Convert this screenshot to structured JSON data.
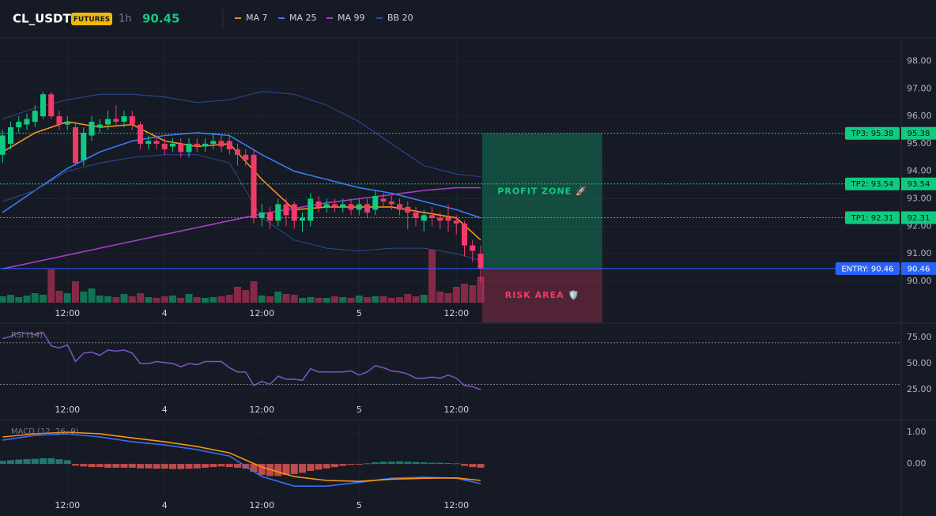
{
  "header": {
    "symbol": "CL_USDT",
    "badge": "FUTURES",
    "interval": "1h",
    "price": 90.45
  },
  "chart_data": [
    {
      "type": "candlestick",
      "up_color": "#0ecb81",
      "down_color": "#f23a68",
      "categories": [
        null,
        null,
        null,
        null,
        null,
        null,
        null,
        null,
        "12:00",
        null,
        null,
        null,
        null,
        null,
        null,
        null,
        null,
        null,
        null,
        null,
        "4",
        null,
        null,
        null,
        null,
        null,
        null,
        null,
        null,
        null,
        null,
        null,
        "12:00",
        null,
        null,
        null,
        null,
        null,
        null,
        null,
        null,
        null,
        null,
        null,
        "5",
        null,
        null,
        null,
        null,
        null,
        null,
        null,
        null,
        null,
        null,
        null,
        "12:00",
        null,
        null,
        null
      ],
      "open": [
        94.6,
        95.0,
        95.6,
        95.7,
        95.8,
        96.0,
        96.8,
        96.0,
        95.7,
        95.6,
        94.4,
        95.3,
        95.6,
        95.7,
        95.9,
        95.8,
        96.0,
        95.7,
        95.0,
        95.1,
        95.0,
        94.9,
        95.0,
        94.7,
        95.0,
        94.9,
        95.0,
        95.1,
        95.1,
        94.8,
        94.6,
        94.6,
        92.3,
        92.5,
        92.2,
        92.8,
        92.8,
        92.2,
        92.2,
        92.9,
        92.7,
        92.8,
        92.7,
        92.8,
        92.6,
        92.8,
        92.6,
        93.0,
        92.9,
        92.8,
        92.7,
        92.5,
        92.2,
        92.4,
        92.3,
        92.3,
        92.2,
        92.1,
        91.3,
        91.0
      ],
      "high": [
        95.5,
        95.8,
        96.0,
        96.1,
        96.4,
        96.9,
        96.9,
        96.2,
        96.0,
        95.8,
        95.6,
        96.0,
        95.9,
        96.2,
        96.4,
        96.2,
        96.2,
        95.8,
        95.3,
        95.3,
        95.2,
        95.2,
        95.2,
        95.2,
        95.2,
        95.2,
        95.4,
        95.3,
        95.3,
        95.0,
        94.8,
        94.8,
        92.8,
        92.7,
        93.0,
        93.0,
        92.9,
        92.5,
        93.2,
        93.1,
        93.0,
        93.0,
        93.0,
        93.0,
        93.0,
        93.0,
        93.3,
        93.2,
        93.1,
        93.0,
        92.9,
        92.7,
        92.6,
        92.7,
        92.5,
        92.8,
        92.4,
        92.2,
        91.5,
        91.3
      ],
      "low": [
        94.3,
        94.8,
        95.4,
        95.5,
        95.6,
        95.9,
        95.9,
        95.5,
        95.5,
        94.2,
        94.2,
        95.1,
        95.4,
        95.5,
        95.6,
        95.6,
        95.5,
        94.8,
        94.8,
        94.8,
        94.6,
        94.7,
        94.5,
        94.5,
        94.7,
        94.7,
        94.8,
        94.7,
        94.6,
        94.2,
        94.2,
        92.1,
        92.0,
        91.9,
        92.0,
        92.0,
        91.9,
        91.8,
        92.0,
        92.5,
        92.5,
        92.5,
        92.5,
        92.4,
        92.4,
        92.3,
        92.4,
        92.7,
        92.6,
        92.4,
        91.9,
        92.0,
        91.8,
        92.0,
        91.9,
        91.8,
        91.7,
        90.9,
        90.7,
        90.0
      ],
      "close": [
        95.3,
        95.6,
        95.8,
        95.9,
        96.2,
        96.8,
        96.0,
        95.7,
        95.8,
        94.3,
        95.4,
        95.8,
        95.7,
        95.9,
        95.8,
        96.0,
        95.7,
        95.0,
        95.1,
        95.0,
        94.8,
        95.0,
        94.7,
        95.0,
        94.9,
        95.0,
        95.1,
        94.9,
        94.8,
        94.6,
        94.4,
        92.3,
        92.5,
        92.2,
        92.8,
        92.4,
        92.2,
        92.3,
        93.0,
        92.7,
        92.8,
        92.7,
        92.8,
        92.6,
        92.8,
        92.5,
        93.1,
        92.9,
        92.8,
        92.6,
        92.5,
        92.3,
        92.4,
        92.3,
        92.2,
        92.2,
        92.1,
        91.3,
        91.1,
        90.46
      ],
      "volume": [
        8,
        10,
        7,
        9,
        12,
        10,
        42,
        15,
        12,
        27,
        14,
        18,
        9,
        8,
        7,
        11,
        8,
        12,
        7,
        6,
        8,
        9,
        6,
        11,
        7,
        6,
        7,
        8,
        10,
        20,
        16,
        27,
        9,
        8,
        14,
        11,
        10,
        6,
        7,
        6,
        6,
        8,
        7,
        6,
        9,
        7,
        8,
        8,
        6,
        7,
        11,
        8,
        10,
        67,
        14,
        12,
        20,
        24,
        22,
        33
      ],
      "series": [
        {
          "name": "MA 7",
          "color": "#f7931a",
          "x": [
            0,
            4,
            8,
            12,
            16,
            20,
            24,
            28,
            32,
            36,
            40,
            44,
            48,
            52,
            56,
            59
          ],
          "values": [
            94.7,
            95.4,
            95.8,
            95.6,
            95.7,
            95.1,
            94.9,
            95.0,
            93.7,
            92.6,
            92.7,
            92.7,
            92.7,
            92.5,
            92.3,
            91.5
          ]
        },
        {
          "name": "MA 25",
          "color": "#3b7bf6",
          "x": [
            0,
            4,
            8,
            12,
            16,
            20,
            24,
            28,
            32,
            36,
            40,
            44,
            48,
            52,
            56,
            59
          ],
          "values": [
            92.5,
            93.3,
            94.1,
            94.7,
            95.1,
            95.3,
            95.4,
            95.3,
            94.6,
            94.0,
            93.7,
            93.4,
            93.2,
            92.9,
            92.6,
            92.3
          ]
        },
        {
          "name": "MA 99",
          "color": "#a43fc7",
          "x": [
            0,
            4,
            8,
            12,
            16,
            20,
            24,
            28,
            32,
            36,
            40,
            44,
            48,
            52,
            56,
            59
          ],
          "values": [
            90.45,
            90.7,
            90.95,
            91.2,
            91.45,
            91.7,
            91.95,
            92.2,
            92.45,
            92.65,
            92.85,
            93.0,
            93.15,
            93.3,
            93.4,
            93.4
          ]
        },
        {
          "name": "BB 20",
          "color": "#2c4b94",
          "x": [
            0,
            4,
            8,
            12,
            16,
            20,
            24,
            28,
            32,
            36,
            40,
            44,
            48,
            52,
            56,
            59
          ],
          "values": [
            95.9,
            96.3,
            96.6,
            96.8,
            96.8,
            96.7,
            96.5,
            96.6,
            96.9,
            96.8,
            96.4,
            95.8,
            95.0,
            94.2,
            93.9,
            93.8
          ],
          "lower": [
            92.9,
            93.3,
            94.0,
            94.3,
            94.5,
            94.6,
            94.6,
            94.3,
            92.3,
            91.5,
            91.2,
            91.1,
            91.2,
            91.2,
            91.0,
            90.75
          ]
        }
      ],
      "levels": [
        {
          "label": "TP3: 95.38",
          "value": 95.38,
          "color": "#0ecb81",
          "style": "dotted"
        },
        {
          "label": "TP2: 93.54",
          "value": 93.54,
          "color": "#0ecb81",
          "style": "dotted"
        },
        {
          "label": "TP1: 92.31",
          "value": 92.31,
          "color": "#0ecb81",
          "style": "dotted"
        },
        {
          "label": "ENTRY: 90.46",
          "value": 90.46,
          "color": "#2962ff",
          "style": "solid"
        }
      ],
      "zones": [
        {
          "label": "PROFIT ZONE 🚀",
          "from": 90.46,
          "to": 95.38,
          "color": "#0ecb81"
        },
        {
          "label": "RISK AREA 🛡️",
          "from": 88.5,
          "to": 90.46,
          "color": "#f23a68"
        }
      ],
      "ylim": [
        88.5,
        98.85
      ],
      "yticks": [
        {
          "value": 98,
          "label": "98.00"
        },
        {
          "value": 97,
          "label": "97.00"
        },
        {
          "value": 96,
          "label": "96.00"
        },
        {
          "value": 95,
          "label": "95.00"
        },
        {
          "value": 94,
          "label": "94.00"
        },
        {
          "value": 93,
          "label": "93.00"
        },
        {
          "value": 92,
          "label": "92.00"
        },
        {
          "value": 91,
          "label": "91.00"
        },
        {
          "value": 90,
          "label": "90.00"
        }
      ]
    },
    {
      "type": "line",
      "title": "RSI (14)",
      "color": "#7e57c2",
      "categories": [
        null,
        null,
        null,
        null,
        null,
        null,
        null,
        null,
        "12:00",
        null,
        null,
        null,
        null,
        null,
        null,
        null,
        null,
        null,
        null,
        null,
        "4",
        null,
        null,
        null,
        null,
        null,
        null,
        null,
        null,
        null,
        null,
        null,
        "12:00",
        null,
        null,
        null,
        null,
        null,
        null,
        null,
        null,
        null,
        null,
        null,
        "5",
        null,
        null,
        null,
        null,
        null,
        null,
        null,
        null,
        null,
        null,
        null,
        "12:00",
        null,
        null,
        null
      ],
      "values": [
        74,
        76,
        80,
        79,
        78,
        80,
        67,
        65,
        68,
        52,
        60,
        61,
        58,
        63,
        62,
        63,
        60,
        50,
        50,
        52,
        51,
        50,
        47,
        50,
        49,
        52,
        52,
        52,
        46,
        42,
        42,
        29,
        33,
        30,
        38,
        35,
        35,
        34,
        45,
        42,
        42,
        42,
        42,
        43,
        39,
        42,
        48,
        46,
        43,
        42,
        40,
        36,
        36,
        37,
        36,
        39,
        36,
        29,
        28,
        25
      ],
      "levels": [
        70,
        30
      ],
      "ylim": [
        16,
        88
      ],
      "yticks": [
        {
          "value": 75,
          "label": "75.00"
        },
        {
          "value": 50,
          "label": "50.00"
        },
        {
          "value": 25,
          "label": "25.00"
        }
      ]
    },
    {
      "type": "macd",
      "title": "MACD (12, 26, 9)",
      "up_color": "#1f8c80",
      "down_color": "#e0534f",
      "categories": [
        null,
        null,
        null,
        null,
        null,
        null,
        null,
        null,
        "12:00",
        null,
        null,
        null,
        null,
        null,
        null,
        null,
        null,
        null,
        null,
        null,
        "4",
        null,
        null,
        null,
        null,
        null,
        null,
        null,
        null,
        null,
        null,
        null,
        "12:00",
        null,
        null,
        null,
        null,
        null,
        null,
        null,
        null,
        null,
        null,
        null,
        "5",
        null,
        null,
        null,
        null,
        null,
        null,
        null,
        null,
        null,
        null,
        null,
        "12:00",
        null,
        null,
        null
      ],
      "histogram": [
        0.1,
        0.12,
        0.14,
        0.15,
        0.16,
        0.18,
        0.18,
        0.15,
        0.12,
        -0.05,
        -0.08,
        -0.1,
        -0.1,
        -0.12,
        -0.12,
        -0.12,
        -0.12,
        -0.14,
        -0.14,
        -0.15,
        -0.15,
        -0.16,
        -0.16,
        -0.15,
        -0.14,
        -0.12,
        -0.1,
        -0.08,
        -0.1,
        -0.12,
        -0.15,
        -0.25,
        -0.35,
        -0.38,
        -0.38,
        -0.35,
        -0.32,
        -0.28,
        -0.22,
        -0.18,
        -0.14,
        -0.1,
        -0.06,
        -0.03,
        -0.02,
        0.02,
        0.05,
        0.07,
        0.07,
        0.08,
        0.07,
        0.06,
        0.05,
        0.04,
        0.04,
        0.03,
        0.02,
        -0.06,
        -0.1,
        -0.12
      ],
      "series": [
        {
          "color": "#3b6ef0",
          "x": [
            0,
            4,
            8,
            12,
            16,
            20,
            24,
            28,
            32,
            36,
            40,
            44,
            48,
            52,
            56,
            59
          ],
          "values": [
            0.75,
            0.9,
            0.95,
            0.85,
            0.7,
            0.6,
            0.45,
            0.25,
            -0.4,
            -0.7,
            -0.7,
            -0.58,
            -0.45,
            -0.42,
            -0.45,
            -0.62
          ]
        },
        {
          "color": "#f7931a",
          "x": [
            0,
            4,
            8,
            12,
            16,
            20,
            24,
            28,
            32,
            36,
            40,
            44,
            48,
            52,
            56,
            59
          ],
          "values": [
            0.85,
            0.95,
            1.0,
            0.95,
            0.82,
            0.7,
            0.55,
            0.35,
            -0.1,
            -0.4,
            -0.52,
            -0.55,
            -0.48,
            -0.45,
            -0.44,
            -0.52
          ]
        }
      ],
      "ylim": [
        -1.02,
        1.35
      ],
      "yticks": [
        {
          "value": 1,
          "label": "1.00"
        },
        {
          "value": 0,
          "label": "0.00"
        }
      ]
    }
  ]
}
